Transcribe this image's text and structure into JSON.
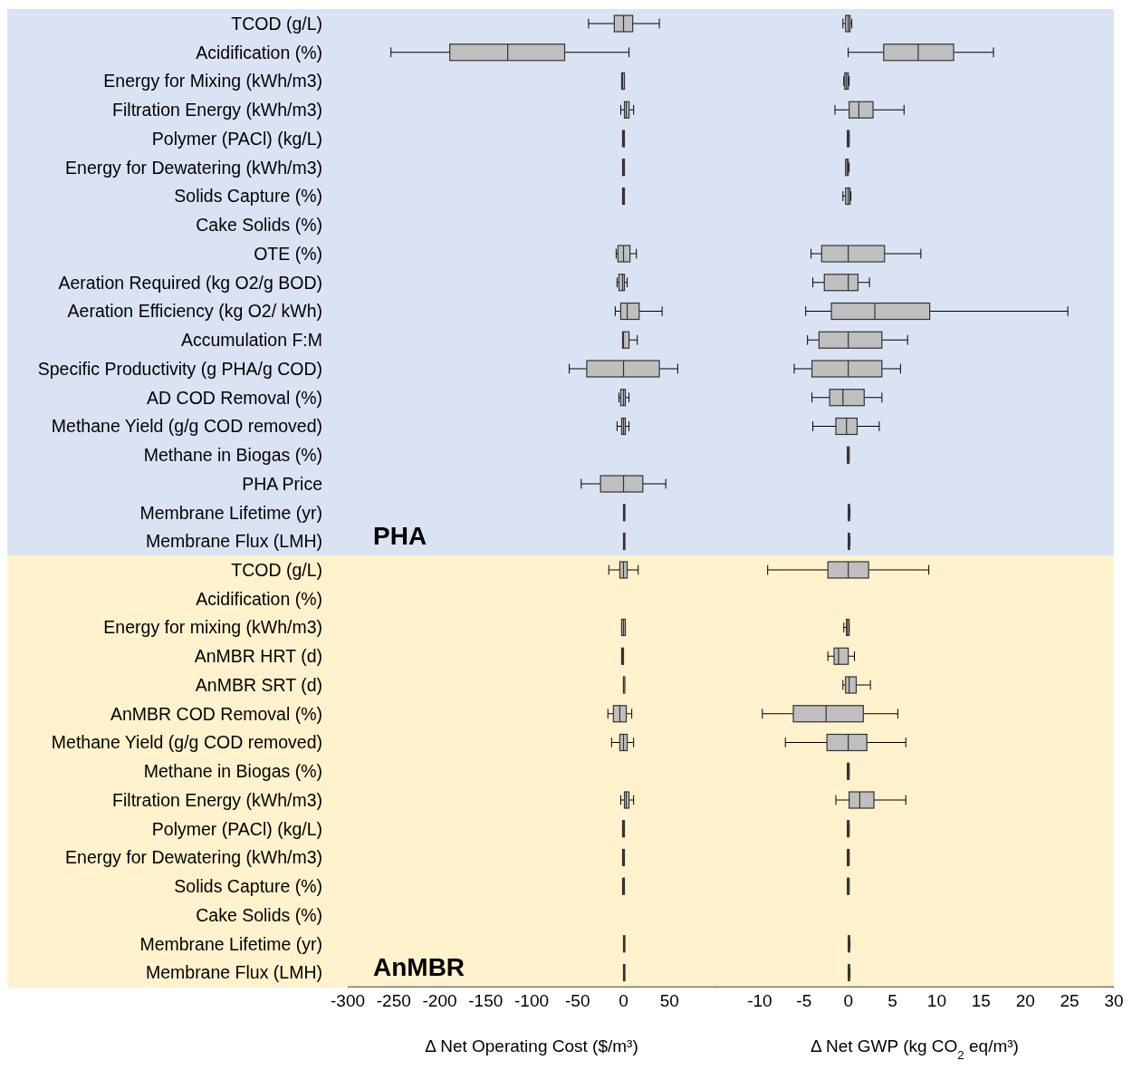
{
  "chart_data": [
    {
      "type": "box",
      "orientation": "horizontal",
      "color": "#bfbfbf",
      "tick_labels": "y",
      "xlim": [
        -300,
        100
      ],
      "categories": [
        "TCOD (g/L)",
        "Acidification (%)",
        "Energy for Mixing (kWh/m3)",
        "Filtration Energy (kWh/m3)",
        "Polymer (PACl) (kg/L)",
        "Energy for Dewatering (kWh/m3)",
        "Solids Capture (%)",
        "Cake Solids (%)",
        "OTE (%)",
        "Aeration Required (kg O2/g BOD)",
        "Aeration Efficiency (kg O2/ kWh)",
        "Accumulation F:M",
        "Specific Productivity (g PHA/g COD)",
        "AD COD Removal (%)",
        "Methane Yield (g/g COD removed)",
        "Methane in Biogas (%)",
        "PHA Price",
        "Membrane Lifetime (yr)",
        "Membrane Flux (LMH)"
      ],
      "boxes": [
        {
          "low": -38,
          "q1": -10,
          "median": 0,
          "q3": 10,
          "high": 39
        },
        {
          "low": -253,
          "q1": -189,
          "median": -126,
          "q3": -64,
          "high": 6
        },
        {
          "low": -2,
          "q1": -2,
          "median": -1,
          "q3": 1,
          "high": 1
        },
        {
          "low": -3,
          "q1": 1,
          "median": 3,
          "q3": 6,
          "high": 11
        },
        {
          "low": -1,
          "q1": -1,
          "median": 0,
          "q3": 1,
          "high": 1
        },
        {
          "low": -1,
          "q1": -1,
          "median": 0,
          "q3": 1,
          "high": 1
        },
        {
          "low": -1,
          "q1": -1,
          "median": 0,
          "q3": 1,
          "high": 1
        },
        null,
        {
          "low": -8,
          "q1": -6,
          "median": 0,
          "q3": 7,
          "high": 14
        },
        {
          "low": -7,
          "q1": -5,
          "median": -1,
          "q3": 1,
          "high": 4
        },
        {
          "low": -9,
          "q1": -3,
          "median": 4,
          "q3": 17,
          "high": 42
        },
        {
          "low": -1,
          "q1": -1,
          "median": 0,
          "q3": 6,
          "high": 15
        },
        {
          "low": -59,
          "q1": -40,
          "median": 0,
          "q3": 39,
          "high": 59
        },
        {
          "low": -5,
          "q1": -3,
          "median": 0,
          "q3": 2,
          "high": 6
        },
        {
          "low": -7,
          "q1": -2,
          "median": 0,
          "q3": 2,
          "high": 6
        },
        null,
        {
          "low": -46,
          "q1": -25,
          "median": 0,
          "q3": 21,
          "high": 46
        },
        {
          "low": 0,
          "q1": 0,
          "median": 1,
          "q3": 1,
          "high": 1
        },
        {
          "low": 0,
          "q1": 0,
          "median": 1,
          "q3": 1,
          "high": 1
        }
      ],
      "bands": [
        {
          "axis": "y",
          "from": "TCOD (g/L)",
          "to": "Membrane Flux (LMH)",
          "label": "PHA",
          "color": "#dae3f3"
        }
      ]
    },
    {
      "type": "box",
      "orientation": "horizontal",
      "color": "#bfbfbf",
      "tick_labels": false,
      "xlim": [
        -15,
        30
      ],
      "categories": [
        "TCOD (g/L)",
        "Acidification (%)",
        "Energy for Mixing (kWh/m3)",
        "Filtration Energy (kWh/m3)",
        "Polymer (PACl) (kg/L)",
        "Energy for Dewatering (kWh/m3)",
        "Solids Capture (%)",
        "Cake Solids (%)",
        "OTE (%)",
        "Aeration Required (kg O2/g BOD)",
        "Aeration Efficiency (kg O2/ kWh)",
        "Accumulation F:M",
        "Specific Productivity (g PHA/g COD)",
        "AD COD Removal (%)",
        "Methane Yield (g/g COD removed)",
        "Methane in Biogas (%)",
        "PHA Price",
        "Membrane Lifetime (yr)",
        "Membrane Flux (LMH)"
      ],
      "boxes": [
        {
          "low": -0.6,
          "q1": -0.3,
          "median": 0,
          "q3": 0.2,
          "high": 0.4
        },
        {
          "low": 0,
          "q1": 4,
          "median": 7.9,
          "q3": 11.9,
          "high": 16.4
        },
        {
          "low": -0.5,
          "q1": -0.4,
          "median": -0.2,
          "q3": 0,
          "high": 0.1
        },
        {
          "low": -1.5,
          "q1": 0.1,
          "median": 1.2,
          "q3": 2.8,
          "high": 6.3
        },
        {
          "low": -0.1,
          "q1": -0.1,
          "median": 0,
          "q3": 0.1,
          "high": 0.1
        },
        {
          "low": -0.3,
          "q1": -0.3,
          "median": -0.1,
          "q3": 0,
          "high": 0.1
        },
        {
          "low": -0.6,
          "q1": -0.3,
          "median": 0,
          "q3": 0.2,
          "high": 0.3
        },
        null,
        {
          "low": -4.2,
          "q1": -3,
          "median": 0,
          "q3": 4.1,
          "high": 8.2
        },
        {
          "low": -4,
          "q1": -2.7,
          "median": 0,
          "q3": 1.1,
          "high": 2.4
        },
        {
          "low": -4.8,
          "q1": -1.9,
          "median": 3,
          "q3": 9.2,
          "high": 24.8
        },
        {
          "low": -4.6,
          "q1": -3.3,
          "median": 0,
          "q3": 3.8,
          "high": 6.7
        },
        {
          "low": -6.1,
          "q1": -4.1,
          "median": 0,
          "q3": 3.8,
          "high": 5.9
        },
        {
          "low": -4.1,
          "q1": -2.1,
          "median": -0.6,
          "q3": 1.8,
          "high": 3.8
        },
        {
          "low": -4,
          "q1": -1.4,
          "median": -0.2,
          "q3": 1,
          "high": 3.5
        },
        {
          "low": -0.1,
          "q1": -0.1,
          "median": 0,
          "q3": 0.1,
          "high": 0.1
        },
        null,
        {
          "low": 0,
          "q1": 0,
          "median": 0.1,
          "q3": 0.1,
          "high": 0.2
        },
        {
          "low": 0,
          "q1": 0,
          "median": 0.1,
          "q3": 0.1,
          "high": 0.2
        }
      ],
      "bands": [
        {
          "axis": "y",
          "from": "TCOD (g/L)",
          "to": "Membrane Flux (LMH)",
          "color": "#dae3f3"
        }
      ]
    },
    {
      "type": "box",
      "orientation": "horizontal",
      "color": "#bfbfbf",
      "xlabel": "Δ Net Operating Cost ($/m³)",
      "xlim": [
        -300,
        100
      ],
      "xticks": [
        -300,
        -250,
        -200,
        -150,
        -100,
        -50,
        0,
        50
      ],
      "categories": [
        "TCOD (g/L)",
        "Acidification (%)",
        "Energy for mixing (kWh/m3)",
        "AnMBR HRT (d)",
        "AnMBR SRT (d)",
        "AnMBR COD Removal (%)",
        "Methane Yield (g/g COD removed)",
        "Methane in Biogas (%)",
        "Filtration Energy (kWh/m3)",
        "Polymer (PACl) (kg/L)",
        "Energy for Dewatering (kWh/m3)",
        "Solids Capture (%)",
        "Cake Solids (%)",
        "Membrane Lifetime (yr)",
        "Membrane Flux (LMH)"
      ],
      "boxes": [
        {
          "low": -16,
          "q1": -4,
          "median": 0,
          "q3": 4,
          "high": 16
        },
        null,
        {
          "low": -2,
          "q1": -2,
          "median": 0,
          "q3": 2,
          "high": 2
        },
        {
          "low": -2,
          "q1": -2,
          "median": -1,
          "q3": 0,
          "high": 0
        },
        {
          "low": 0,
          "q1": 0,
          "median": 0,
          "q3": 1,
          "high": 1
        },
        {
          "low": -17,
          "q1": -11,
          "median": -4,
          "q3": 3,
          "high": 9
        },
        {
          "low": -13,
          "q1": -4,
          "median": 0,
          "q3": 4,
          "high": 11
        },
        null,
        {
          "low": -3,
          "q1": 1,
          "median": 3,
          "q3": 6,
          "high": 11
        },
        {
          "low": -1,
          "q1": -1,
          "median": 0,
          "q3": 1,
          "high": 1
        },
        {
          "low": -1,
          "q1": -1,
          "median": 0,
          "q3": 1,
          "high": 1
        },
        {
          "low": -1,
          "q1": -1,
          "median": 0,
          "q3": 1,
          "high": 1
        },
        null,
        {
          "low": 0,
          "q1": 0,
          "median": 1,
          "q3": 1,
          "high": 1
        },
        {
          "low": 0,
          "q1": 0,
          "median": 1,
          "q3": 1,
          "high": 1
        }
      ],
      "bands": [
        {
          "axis": "y",
          "from": "TCOD (g/L)",
          "to": "Membrane Flux (LMH)",
          "label": "AnMBR",
          "color": "#fff2cc"
        }
      ]
    },
    {
      "type": "box",
      "orientation": "horizontal",
      "color": "#bfbfbf",
      "tick_labels": "x",
      "xlabel": "Δ Net GWP (kg CO$_{2}$ eq/m³)",
      "xlim": [
        -15,
        30
      ],
      "xticks": [
        -10,
        -5,
        0,
        5,
        10,
        15,
        20,
        25,
        30
      ],
      "categories": [
        "TCOD (g/L)",
        "Acidification (%)",
        "Energy for mixing (kWh/m3)",
        "AnMBR HRT (d)",
        "AnMBR SRT (d)",
        "AnMBR COD Removal (%)",
        "Methane Yield (g/g COD removed)",
        "Methane in Biogas (%)",
        "Filtration Energy (kWh/m3)",
        "Polymer (PACl) (kg/L)",
        "Energy for Dewatering (kWh/m3)",
        "Solids Capture (%)",
        "Cake Solids (%)",
        "Membrane Lifetime (yr)",
        "Membrane Flux (LMH)"
      ],
      "boxes": [
        {
          "low": -9.1,
          "q1": -2.3,
          "median": 0,
          "q3": 2.3,
          "high": 9.1
        },
        null,
        {
          "low": -0.5,
          "q1": -0.2,
          "median": -0.1,
          "q3": 0.1,
          "high": 0.1
        },
        {
          "low": -2.3,
          "q1": -1.6,
          "median": -1.1,
          "q3": 0,
          "high": 0.7
        },
        {
          "low": -0.6,
          "q1": -0.3,
          "median": 0.1,
          "q3": 0.9,
          "high": 2.5
        },
        {
          "low": -9.7,
          "q1": -6.2,
          "median": -2.5,
          "q3": 1.7,
          "high": 5.6
        },
        {
          "low": -7.1,
          "q1": -2.4,
          "median": 0,
          "q3": 2.1,
          "high": 6.5
        },
        {
          "low": -0.1,
          "q1": -0.1,
          "median": 0,
          "q3": 0.1,
          "high": 0.1
        },
        {
          "low": -1.4,
          "q1": 0.1,
          "median": 1.3,
          "q3": 2.9,
          "high": 6.5
        },
        {
          "low": -0.1,
          "q1": -0.1,
          "median": 0,
          "q3": 0.1,
          "high": 0.1
        },
        {
          "low": -0.1,
          "q1": -0.1,
          "median": 0,
          "q3": 0.1,
          "high": 0.1
        },
        {
          "low": -0.1,
          "q1": -0.1,
          "median": 0,
          "q3": 0.1,
          "high": 0.1
        },
        null,
        {
          "low": 0,
          "q1": 0,
          "median": 0.1,
          "q3": 0.1,
          "high": 0.2
        },
        {
          "low": 0,
          "q1": 0,
          "median": 0.1,
          "q3": 0.1,
          "high": 0.2
        }
      ],
      "bands": [
        {
          "axis": "y",
          "from": "TCOD (g/L)",
          "to": "Membrane Flux (LMH)",
          "color": "#fff2cc"
        }
      ]
    }
  ]
}
